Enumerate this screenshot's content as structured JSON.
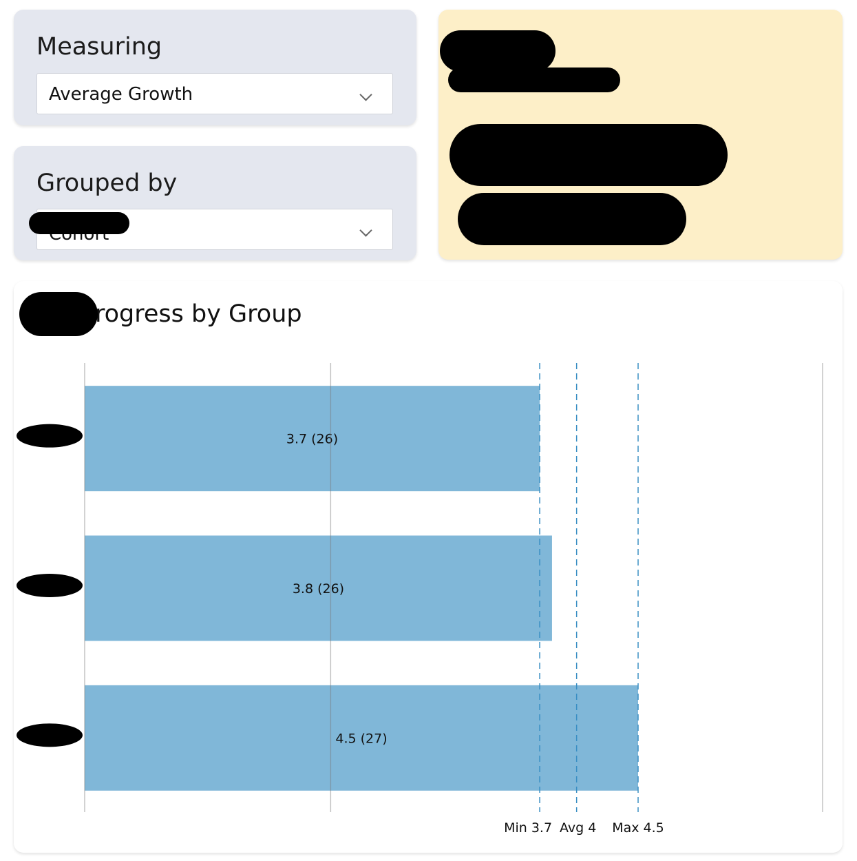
{
  "controls": {
    "measuring": {
      "title": "Measuring",
      "selected": "Average Growth"
    },
    "grouped_by": {
      "title": "Grouped by",
      "selected": "Cohort"
    }
  },
  "colors": {
    "bar": "#80b7d8",
    "ref_line": "#3a8fc4",
    "info_card": "#fdefc8",
    "control_card": "#e4e7ef"
  },
  "chart_data": {
    "type": "bar",
    "orientation": "horizontal",
    "title": "rogress by Group",
    "categories": [
      "",
      "",
      ""
    ],
    "values": [
      3.7,
      3.8,
      4.5
    ],
    "counts": [
      26,
      26,
      27
    ],
    "data_labels": [
      "3.7 (26)",
      "3.8 (26)",
      "4.5 (27)"
    ],
    "xlim": [
      0,
      6
    ],
    "gridlines": [
      0,
      2,
      4,
      6
    ],
    "grid": true,
    "reference_lines": [
      {
        "label": "Min 3.7",
        "value": 3.7
      },
      {
        "label": "Avg 4",
        "value": 4.0
      },
      {
        "label": "Max 4.5",
        "value": 4.5
      }
    ]
  }
}
